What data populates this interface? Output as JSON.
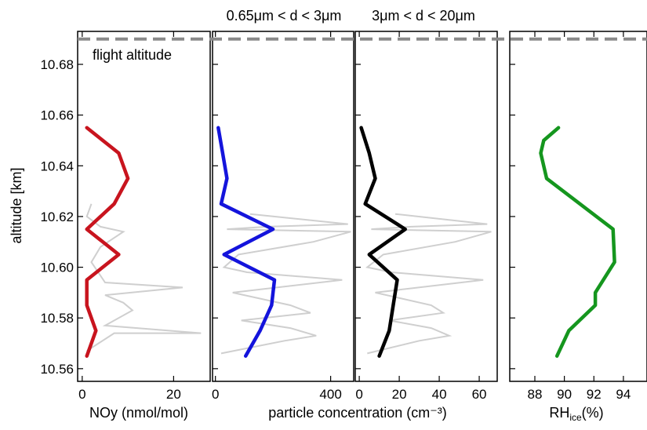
{
  "chart_data": {
    "type": "line",
    "ylabel": "altitude [km]",
    "ylim": [
      10.555,
      10.693
    ],
    "yticks": [
      10.56,
      10.58,
      10.6,
      10.62,
      10.64,
      10.66,
      10.68
    ],
    "ytick_labels": [
      "10.56",
      "10.58",
      "10.60",
      "10.62",
      "10.64",
      "10.66",
      "10.68"
    ],
    "flight_altitude": 10.69,
    "flight_altitude_label": "flight altitude",
    "shared_xlabel": "particle concentration (cm⁻³)",
    "panels": [
      {
        "id": "noy",
        "xlabel": "NOy (nmol/mol)",
        "xlim": [
          -1,
          28
        ],
        "xticks": [
          0,
          20
        ],
        "xtick_labels": [
          "0",
          "20"
        ],
        "color": "#c8141e",
        "profile": {
          "x": [
            1,
            3,
            1,
            1,
            8,
            1,
            7,
            10,
            8,
            1
          ],
          "y": [
            10.565,
            10.575,
            10.585,
            10.595,
            10.605,
            10.615,
            10.625,
            10.635,
            10.645,
            10.655
          ]
        },
        "raw": {
          "x": [
            1,
            7,
            26,
            5,
            11,
            9,
            5,
            22,
            5,
            2,
            4,
            9,
            4,
            1,
            2
          ],
          "y": [
            10.567,
            10.574,
            10.574,
            10.577,
            10.583,
            10.586,
            10.589,
            10.592,
            10.594,
            10.602,
            10.608,
            10.614,
            10.616,
            10.62,
            10.625
          ]
        }
      },
      {
        "id": "fine",
        "title": "0.65μm < d < 3μm",
        "xlim": [
          -10,
          480
        ],
        "xticks": [
          0,
          400
        ],
        "xtick_labels": [
          "0",
          "400"
        ],
        "color": "#1414dc",
        "profile": {
          "x": [
            105,
            155,
            195,
            205,
            30,
            200,
            20,
            40,
            25,
            10
          ],
          "y": [
            10.565,
            10.575,
            10.585,
            10.595,
            10.605,
            10.615,
            10.625,
            10.635,
            10.645,
            10.655
          ]
        },
        "raw": {
          "x": [
            20,
            240,
            350,
            260,
            90,
            330,
            260,
            60,
            440,
            110,
            30,
            80,
            340,
            470,
            40,
            180,
            460,
            120
          ],
          "y": [
            10.566,
            10.571,
            10.573,
            10.576,
            10.579,
            10.582,
            10.585,
            10.59,
            10.595,
            10.598,
            10.6,
            10.605,
            10.61,
            10.614,
            10.615,
            10.616,
            10.617,
            10.621
          ]
        }
      },
      {
        "id": "coarse",
        "title": "3μm < d < 20μm",
        "xlim": [
          -2,
          69
        ],
        "xticks": [
          0,
          20,
          40,
          60
        ],
        "xtick_labels": [
          "0",
          "20",
          "40",
          "60"
        ],
        "color": "#000000",
        "profile": {
          "x": [
            10,
            15,
            17,
            19,
            5,
            23,
            3,
            8,
            5,
            1
          ],
          "y": [
            10.565,
            10.575,
            10.585,
            10.595,
            10.605,
            10.615,
            10.625,
            10.635,
            10.645,
            10.655
          ]
        },
        "raw": {
          "x": [
            4,
            30,
            45,
            36,
            15,
            42,
            36,
            8,
            62,
            16,
            4,
            12,
            48,
            66,
            6,
            26,
            64,
            18
          ],
          "y": [
            10.566,
            10.571,
            10.573,
            10.576,
            10.579,
            10.582,
            10.585,
            10.59,
            10.595,
            10.598,
            10.6,
            10.605,
            10.61,
            10.614,
            10.615,
            10.616,
            10.617,
            10.621
          ]
        }
      },
      {
        "id": "rhice",
        "xlabel": "RH",
        "xlabel_sub": "ice",
        "xlabel_suffix": "(%)",
        "xlim": [
          86.3,
          95.6
        ],
        "xticks": [
          88,
          90,
          92,
          94
        ],
        "xtick_labels": [
          "88",
          "90",
          "92",
          "94"
        ],
        "color": "#15961e",
        "profile": {
          "x": [
            89.5,
            90.3,
            92.1,
            92.1,
            93.4,
            93.3,
            88.8,
            88.4,
            88.6,
            89.6
          ],
          "y": [
            10.565,
            10.575,
            10.585,
            10.59,
            10.602,
            10.615,
            10.635,
            10.645,
            10.65,
            10.655
          ]
        }
      }
    ]
  }
}
